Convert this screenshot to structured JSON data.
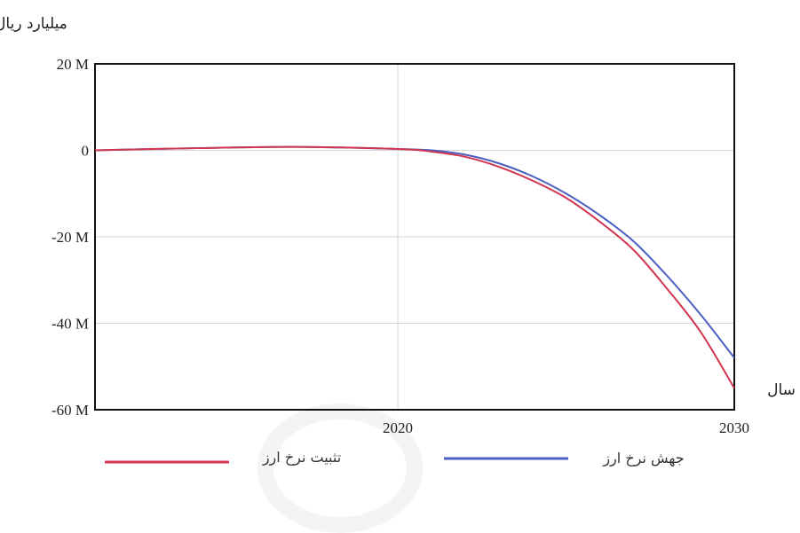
{
  "chart_data": {
    "type": "line",
    "ylabel": "میلیارد ریال",
    "xlabel": "سال",
    "xlim": [
      2011,
      2030
    ],
    "ylim": [
      -60,
      20
    ],
    "x_ticks": [
      {
        "value": 2020,
        "label": "2020"
      },
      {
        "value": 2030,
        "label": "2030"
      }
    ],
    "y_ticks": [
      {
        "value": 20,
        "label": "20 M"
      },
      {
        "value": 0,
        "label": "0"
      },
      {
        "value": -20,
        "label": "-20 M"
      },
      {
        "value": -40,
        "label": "-40 M"
      },
      {
        "value": -60,
        "label": "-60 M"
      }
    ],
    "grid": true,
    "legend_position": "bottom",
    "series": [
      {
        "name": "جهش نرخ ارز",
        "color": "#4a5fc1",
        "x": [
          2011,
          2014,
          2017,
          2020,
          2021,
          2022,
          2023,
          2024,
          2025,
          2026,
          2027,
          2028,
          2029,
          2030
        ],
        "y": [
          0,
          0.5,
          0.8,
          0.3,
          0,
          -1,
          -3,
          -6,
          -10,
          -15,
          -21,
          -29,
          -38,
          -48
        ]
      },
      {
        "name": "تثبیت نرخ ارز",
        "color": "#d2354f",
        "x": [
          2011,
          2014,
          2017,
          2020,
          2021,
          2022,
          2023,
          2024,
          2025,
          2026,
          2027,
          2028,
          2029,
          2030
        ],
        "y": [
          0,
          0.5,
          0.8,
          0.3,
          -0.3,
          -1.5,
          -3.8,
          -7,
          -11,
          -16.5,
          -23,
          -32,
          -42,
          -55
        ]
      }
    ]
  }
}
